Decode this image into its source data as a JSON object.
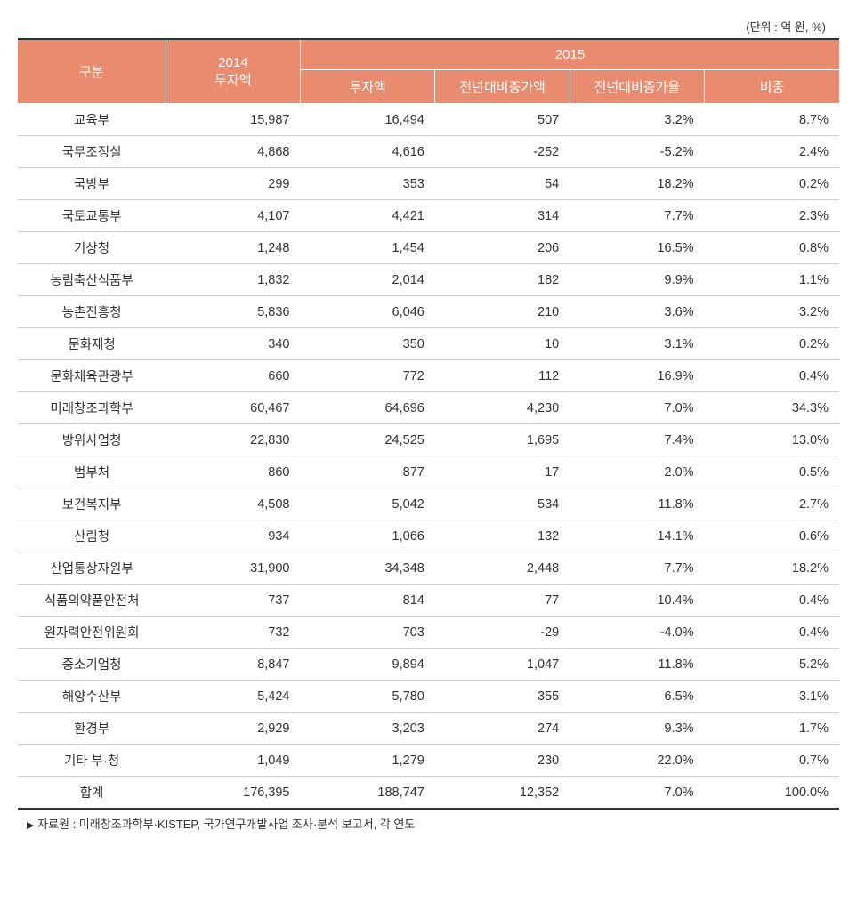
{
  "unit_label": "(단위 : 억 원, %)",
  "header": {
    "category": "구분",
    "col_2014": "2014\n투자액",
    "col_2015": "2015",
    "sub_invest": "투자액",
    "sub_diff": "전년대비증가액",
    "sub_rate": "전년대비증가율",
    "sub_share": "비중"
  },
  "rows": [
    {
      "label": "교육부",
      "y2014": "15,987",
      "invest": "16,494",
      "diff": "507",
      "rate": "3.2%",
      "share": "8.7%"
    },
    {
      "label": "국무조정실",
      "y2014": "4,868",
      "invest": "4,616",
      "diff": "-252",
      "rate": "-5.2%",
      "share": "2.4%"
    },
    {
      "label": "국방부",
      "y2014": "299",
      "invest": "353",
      "diff": "54",
      "rate": "18.2%",
      "share": "0.2%"
    },
    {
      "label": "국토교통부",
      "y2014": "4,107",
      "invest": "4,421",
      "diff": "314",
      "rate": "7.7%",
      "share": "2.3%"
    },
    {
      "label": "기상청",
      "y2014": "1,248",
      "invest": "1,454",
      "diff": "206",
      "rate": "16.5%",
      "share": "0.8%"
    },
    {
      "label": "농림축산식품부",
      "y2014": "1,832",
      "invest": "2,014",
      "diff": "182",
      "rate": "9.9%",
      "share": "1.1%"
    },
    {
      "label": "농촌진흥청",
      "y2014": "5,836",
      "invest": "6,046",
      "diff": "210",
      "rate": "3.6%",
      "share": "3.2%"
    },
    {
      "label": "문화재청",
      "y2014": "340",
      "invest": "350",
      "diff": "10",
      "rate": "3.1%",
      "share": "0.2%"
    },
    {
      "label": "문화체육관광부",
      "y2014": "660",
      "invest": "772",
      "diff": "112",
      "rate": "16.9%",
      "share": "0.4%"
    },
    {
      "label": "미래창조과학부",
      "y2014": "60,467",
      "invest": "64,696",
      "diff": "4,230",
      "rate": "7.0%",
      "share": "34.3%"
    },
    {
      "label": "방위사업청",
      "y2014": "22,830",
      "invest": "24,525",
      "diff": "1,695",
      "rate": "7.4%",
      "share": "13.0%"
    },
    {
      "label": "범부처",
      "y2014": "860",
      "invest": "877",
      "diff": "17",
      "rate": "2.0%",
      "share": "0.5%"
    },
    {
      "label": "보건복지부",
      "y2014": "4,508",
      "invest": "5,042",
      "diff": "534",
      "rate": "11.8%",
      "share": "2.7%"
    },
    {
      "label": "산림청",
      "y2014": "934",
      "invest": "1,066",
      "diff": "132",
      "rate": "14.1%",
      "share": "0.6%"
    },
    {
      "label": "산업통상자원부",
      "y2014": "31,900",
      "invest": "34,348",
      "diff": "2,448",
      "rate": "7.7%",
      "share": "18.2%"
    },
    {
      "label": "식품의약품안전처",
      "y2014": "737",
      "invest": "814",
      "diff": "77",
      "rate": "10.4%",
      "share": "0.4%"
    },
    {
      "label": "원자력안전위원회",
      "y2014": "732",
      "invest": "703",
      "diff": "-29",
      "rate": "-4.0%",
      "share": "0.4%"
    },
    {
      "label": "중소기업청",
      "y2014": "8,847",
      "invest": "9,894",
      "diff": "1,047",
      "rate": "11.8%",
      "share": "5.2%"
    },
    {
      "label": "해양수산부",
      "y2014": "5,424",
      "invest": "5,780",
      "diff": "355",
      "rate": "6.5%",
      "share": "3.1%"
    },
    {
      "label": "환경부",
      "y2014": "2,929",
      "invest": "3,203",
      "diff": "274",
      "rate": "9.3%",
      "share": "1.7%"
    },
    {
      "label": "기타 부·청",
      "y2014": "1,049",
      "invest": "1,279",
      "diff": "230",
      "rate": "22.0%",
      "share": "0.7%"
    },
    {
      "label": "합계",
      "y2014": "176,395",
      "invest": "188,747",
      "diff": "12,352",
      "rate": "7.0%",
      "share": "100.0%"
    }
  ],
  "source": "자료원 : 미래창조과학부·KISTEP, 국가연구개발사업 조사·분석 보고서, 각 연도",
  "styling": {
    "header_bg": "#e88b6f",
    "header_fg": "#ffffff",
    "border_color": "#cccccc",
    "outer_border": "#333333",
    "font_family": "Malgun Gothic",
    "body_fontsize": 14.5,
    "header_fontsize": 15,
    "unit_fontsize": 13,
    "source_fontsize": 13
  }
}
